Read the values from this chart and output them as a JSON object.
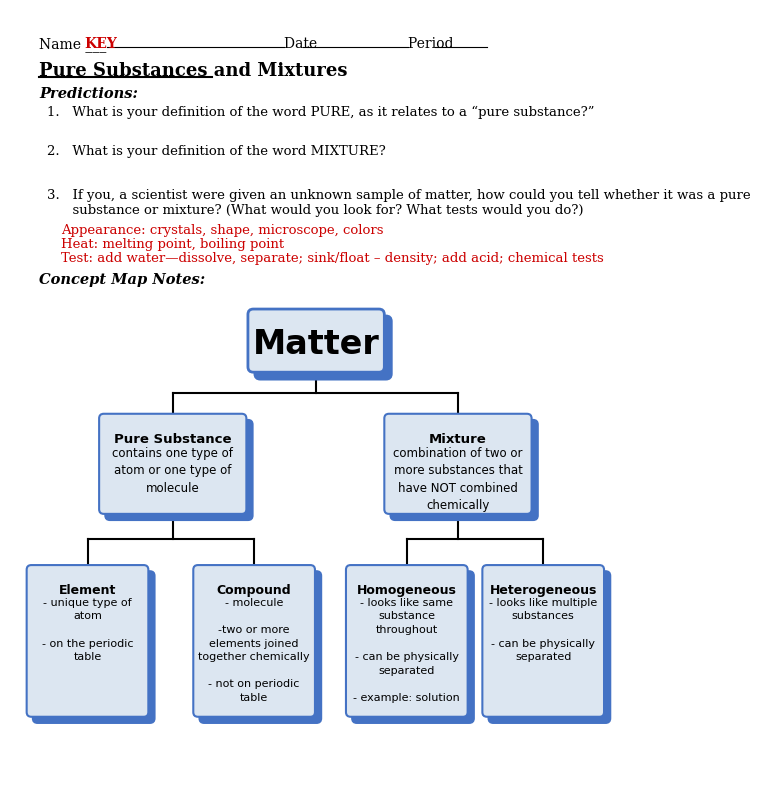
{
  "bg_color": "#ffffff",
  "title": "Pure Substances and Mixtures",
  "predictions_label": "Predictions:",
  "q1": "1.   What is your definition of the word PURE, as it relates to a “pure substance?”",
  "q2": "2.   What is your definition of the word MIXTURE?",
  "q3_black": "3.   If you, a scientist were given an unknown sample of matter, how could you tell whether it was a pure\n      substance or mixture? (What would you look for? What tests would you do?)",
  "q3_red1": "Appearance: crystals, shape, microscope, colors",
  "q3_red2": "Heat: melting point, boiling point",
  "q3_red3": "Test: add water—dissolve, separate; sink/float – density; add acid; chemical tests",
  "concept_map_label": "Concept Map Notes:",
  "node_matter": "Matter",
  "node_pure": "Pure Substance",
  "node_pure_desc": "contains one type of\natom or one type of\nmolecule",
  "node_mixture": "Mixture",
  "node_mixture_desc": "combination of two or\nmore substances that\nhave NOT combined\nchemically",
  "node_element": "Element",
  "node_element_desc": "- unique type of\natom\n\n- on the periodic\ntable",
  "node_compound": "Compound",
  "node_compound_desc": "- molecule\n\n-two or more\nelements joined\ntogether chemically\n\n- not on periodic\ntable",
  "node_homogeneous": "Homogeneous",
  "node_homogeneous_desc": "- looks like same\nsubstance\nthroughout\n\n- can be physically\nseparated\n\n- example: solution",
  "node_heterogeneous": "Heterogeneous",
  "node_heterogeneous_desc": "- looks like multiple\nsubstances\n\n- can be physically\nseparated",
  "blue_dark": "#4472c4",
  "blue_light": "#dce6f1",
  "red_text": "#cc0000",
  "black_text": "#000000"
}
